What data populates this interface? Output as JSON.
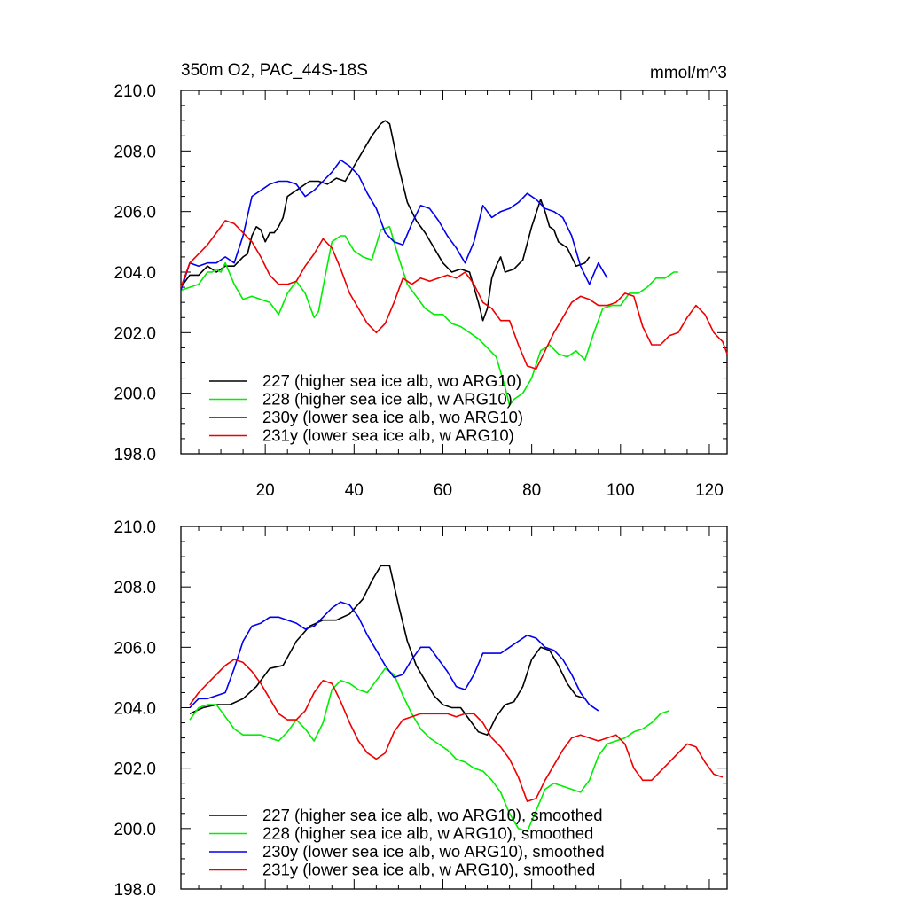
{
  "header": {
    "title": "350m O2, PAC_44S-18S",
    "units": "mmol/m^3"
  },
  "chart_data": [
    {
      "type": "line",
      "title": "350m O2, PAC_44S-18S",
      "units_label": "mmol/m^3",
      "xlim": [
        1,
        124
      ],
      "ylim": [
        198,
        210
      ],
      "x_ticks": [
        20,
        40,
        60,
        80,
        100,
        120
      ],
      "x_tick_labels": [
        "20",
        "40",
        "60",
        "80",
        "100",
        "120"
      ],
      "y_ticks": [
        198,
        200,
        202,
        204,
        206,
        208,
        210
      ],
      "y_tick_labels": [
        "198.0",
        "200.0",
        "202.0",
        "204.0",
        "206.0",
        "208.0",
        "210.0"
      ],
      "grid": false,
      "legend_position": "bottom-left",
      "series": [
        {
          "name": "227 (higher sea ice alb, wo ARG10)",
          "color": "#000000",
          "x": [
            1,
            3,
            5,
            7,
            9,
            11,
            13,
            15,
            16,
            17,
            18,
            19,
            20,
            21,
            22,
            23,
            24,
            25,
            26,
            27,
            28,
            29,
            30,
            32,
            34,
            36,
            38,
            40,
            42,
            44,
            46,
            47,
            48,
            50,
            52,
            54,
            56,
            58,
            60,
            62,
            64,
            66,
            68,
            69,
            70,
            71,
            72,
            73,
            74,
            76,
            78,
            80,
            82,
            83,
            84,
            85,
            86,
            88,
            90,
            92,
            93
          ],
          "y": [
            203.5,
            203.9,
            203.9,
            204.2,
            204.0,
            204.2,
            204.2,
            204.5,
            204.6,
            205.2,
            205.5,
            205.4,
            205.0,
            205.3,
            205.3,
            205.5,
            205.8,
            206.5,
            206.6,
            206.7,
            206.8,
            206.9,
            207.0,
            207.0,
            206.9,
            207.1,
            207.0,
            207.5,
            208.0,
            208.5,
            208.9,
            209.0,
            208.9,
            207.5,
            206.3,
            205.7,
            205.3,
            204.8,
            204.3,
            204.0,
            204.1,
            204.0,
            203.0,
            202.4,
            202.8,
            203.8,
            204.2,
            204.5,
            204.0,
            204.1,
            204.4,
            205.5,
            206.4,
            206.0,
            205.5,
            205.4,
            205.0,
            204.8,
            204.2,
            204.3,
            204.5
          ]
        },
        {
          "name": "228 (higher sea ice alb, w ARG10)",
          "color": "#00ee00",
          "x": [
            1,
            3,
            5,
            7,
            8,
            9,
            10,
            11,
            13,
            15,
            17,
            19,
            21,
            23,
            25,
            27,
            29,
            31,
            32,
            33,
            35,
            37,
            38,
            40,
            42,
            44,
            46,
            48,
            50,
            52,
            54,
            56,
            58,
            60,
            62,
            64,
            66,
            68,
            70,
            72,
            74,
            75,
            76,
            78,
            80,
            82,
            84,
            86,
            88,
            90,
            92,
            94,
            96,
            98,
            100,
            102,
            104,
            106,
            108,
            110,
            112,
            113
          ],
          "y": [
            203.4,
            203.5,
            203.6,
            204.0,
            204.0,
            204.1,
            204.0,
            204.3,
            203.6,
            203.1,
            203.2,
            203.1,
            203.0,
            202.6,
            203.3,
            203.7,
            203.3,
            202.5,
            202.7,
            203.5,
            205.0,
            205.2,
            205.2,
            204.7,
            204.5,
            204.4,
            205.4,
            205.5,
            204.5,
            203.6,
            203.2,
            202.8,
            202.6,
            202.6,
            202.3,
            202.2,
            202.0,
            201.8,
            201.5,
            201.2,
            200.2,
            199.6,
            199.8,
            200.0,
            200.5,
            201.4,
            201.6,
            201.3,
            201.2,
            201.4,
            201.1,
            202.0,
            202.8,
            202.9,
            202.9,
            203.3,
            203.3,
            203.5,
            203.8,
            203.8,
            204.0,
            204.0
          ]
        },
        {
          "name": "230y (lower sea ice alb, wo ARG10)",
          "color": "#0000ee",
          "x": [
            1,
            3,
            5,
            7,
            9,
            11,
            13,
            15,
            17,
            19,
            21,
            23,
            25,
            27,
            29,
            31,
            33,
            35,
            37,
            39,
            41,
            43,
            45,
            47,
            49,
            51,
            53,
            55,
            57,
            59,
            61,
            63,
            65,
            67,
            69,
            71,
            73,
            75,
            77,
            79,
            81,
            83,
            85,
            87,
            89,
            91,
            93,
            95,
            97
          ],
          "y": [
            203.4,
            204.3,
            204.2,
            204.3,
            204.3,
            204.5,
            204.3,
            205.2,
            206.5,
            206.7,
            206.9,
            207.0,
            207.0,
            206.9,
            206.5,
            206.7,
            207.0,
            207.3,
            207.7,
            207.5,
            207.2,
            206.6,
            206.1,
            205.3,
            205.0,
            204.9,
            205.6,
            206.2,
            206.1,
            205.7,
            205.2,
            204.8,
            204.3,
            205.0,
            206.2,
            205.8,
            206.0,
            206.1,
            206.3,
            206.6,
            206.4,
            206.1,
            206.0,
            205.8,
            205.2,
            204.2,
            203.6,
            204.3,
            203.8
          ]
        },
        {
          "name": "231y (lower sea ice alb, w ARG10)",
          "color": "#ee0000",
          "x": [
            1,
            3,
            5,
            7,
            9,
            11,
            13,
            15,
            17,
            19,
            21,
            23,
            25,
            27,
            29,
            31,
            33,
            35,
            37,
            39,
            41,
            43,
            45,
            47,
            49,
            51,
            53,
            55,
            57,
            59,
            61,
            63,
            65,
            67,
            69,
            71,
            73,
            75,
            77,
            79,
            81,
            83,
            85,
            87,
            89,
            91,
            93,
            95,
            97,
            99,
            101,
            103,
            105,
            107,
            109,
            111,
            113,
            115,
            117,
            119,
            121,
            123,
            124
          ],
          "y": [
            203.5,
            204.3,
            204.6,
            204.9,
            205.3,
            205.7,
            205.6,
            205.3,
            205.0,
            204.5,
            203.9,
            203.6,
            203.6,
            203.7,
            204.2,
            204.6,
            205.1,
            204.8,
            204.1,
            203.3,
            202.8,
            202.3,
            202.0,
            202.3,
            203.0,
            203.8,
            203.6,
            203.8,
            203.7,
            203.8,
            203.9,
            203.8,
            204.0,
            203.6,
            203.0,
            202.8,
            202.4,
            202.4,
            201.6,
            200.9,
            200.8,
            201.4,
            202.0,
            202.5,
            203.0,
            203.2,
            203.1,
            202.9,
            202.9,
            203.0,
            203.3,
            203.2,
            202.2,
            201.6,
            201.6,
            201.9,
            202.0,
            202.5,
            202.9,
            202.6,
            202.0,
            201.7,
            201.3
          ]
        }
      ]
    },
    {
      "type": "line",
      "xlim": [
        1,
        124
      ],
      "ylim": [
        198,
        210
      ],
      "y_ticks": [
        198,
        200,
        202,
        204,
        206,
        208,
        210
      ],
      "y_tick_labels": [
        "198.0",
        "200.0",
        "202.0",
        "204.0",
        "206.0",
        "208.0",
        "210.0"
      ],
      "grid": false,
      "legend_position": "bottom-left",
      "series": [
        {
          "name": "227 (higher sea ice alb, wo ARG10), smoothed",
          "color": "#000000",
          "x": [
            3,
            6,
            9,
            12,
            15,
            18,
            21,
            24,
            27,
            30,
            33,
            36,
            39,
            42,
            44,
            46,
            48,
            50,
            52,
            54,
            56,
            58,
            60,
            62,
            64,
            66,
            68,
            70,
            72,
            74,
            76,
            78,
            80,
            82,
            84,
            86,
            88,
            90,
            92
          ],
          "y": [
            203.8,
            204.0,
            204.1,
            204.1,
            204.3,
            204.7,
            205.3,
            205.4,
            206.2,
            206.7,
            206.9,
            206.9,
            207.1,
            207.6,
            208.2,
            208.7,
            208.7,
            207.4,
            206.2,
            205.4,
            204.9,
            204.4,
            204.1,
            204.0,
            204.0,
            203.6,
            203.2,
            203.1,
            203.7,
            204.1,
            204.2,
            204.7,
            205.6,
            206.0,
            205.9,
            205.4,
            204.8,
            204.4,
            204.3
          ]
        },
        {
          "name": "228 (higher sea ice alb, w ARG10), smoothed",
          "color": "#00ee00",
          "x": [
            3,
            5,
            7,
            9,
            11,
            13,
            15,
            17,
            19,
            21,
            23,
            25,
            27,
            29,
            31,
            33,
            35,
            37,
            39,
            41,
            43,
            45,
            47,
            49,
            51,
            53,
            55,
            57,
            59,
            61,
            63,
            65,
            67,
            69,
            71,
            73,
            75,
            77,
            79,
            81,
            83,
            85,
            87,
            89,
            91,
            93,
            95,
            97,
            99,
            101,
            103,
            105,
            107,
            109,
            111
          ],
          "y": [
            203.6,
            204.0,
            204.1,
            204.1,
            203.7,
            203.3,
            203.1,
            203.1,
            203.1,
            203.0,
            202.9,
            203.2,
            203.6,
            203.3,
            202.9,
            203.5,
            204.6,
            204.9,
            204.8,
            204.6,
            204.5,
            204.9,
            205.3,
            205.1,
            204.4,
            203.8,
            203.3,
            203.0,
            202.8,
            202.6,
            202.3,
            202.2,
            202.0,
            201.9,
            201.6,
            201.2,
            200.5,
            200.0,
            199.9,
            200.6,
            201.3,
            201.5,
            201.4,
            201.3,
            201.2,
            201.6,
            202.4,
            202.8,
            202.9,
            203.0,
            203.2,
            203.3,
            203.5,
            203.8,
            203.9
          ]
        },
        {
          "name": "230y (lower sea ice alb, wo ARG10), smoothed",
          "color": "#0000ee",
          "x": [
            3,
            5,
            7,
            9,
            11,
            13,
            15,
            17,
            19,
            21,
            23,
            25,
            27,
            29,
            31,
            33,
            35,
            37,
            39,
            41,
            43,
            45,
            47,
            49,
            51,
            53,
            55,
            57,
            59,
            61,
            63,
            65,
            67,
            69,
            71,
            73,
            75,
            77,
            79,
            81,
            83,
            85,
            87,
            89,
            91,
            93,
            95
          ],
          "y": [
            204.0,
            204.3,
            204.3,
            204.4,
            204.5,
            205.3,
            206.2,
            206.7,
            206.8,
            207.0,
            207.0,
            206.9,
            206.8,
            206.6,
            206.7,
            207.0,
            207.3,
            207.5,
            207.4,
            207.0,
            206.4,
            205.9,
            205.4,
            205.0,
            205.1,
            205.6,
            206.0,
            206.0,
            205.6,
            205.2,
            204.7,
            204.6,
            205.1,
            205.8,
            205.8,
            205.8,
            206.0,
            206.2,
            206.4,
            206.3,
            206.0,
            205.9,
            205.6,
            205.1,
            204.5,
            204.1,
            203.9
          ]
        },
        {
          "name": "231y (lower sea ice alb, w ARG10), smoothed",
          "color": "#ee0000",
          "x": [
            3,
            5,
            7,
            9,
            11,
            13,
            15,
            17,
            19,
            21,
            23,
            25,
            27,
            29,
            31,
            33,
            35,
            37,
            39,
            41,
            43,
            45,
            47,
            49,
            51,
            53,
            55,
            57,
            59,
            61,
            63,
            65,
            67,
            69,
            71,
            73,
            75,
            77,
            79,
            81,
            83,
            85,
            87,
            89,
            91,
            93,
            95,
            97,
            99,
            101,
            103,
            105,
            107,
            109,
            111,
            113,
            115,
            117,
            119,
            121,
            123
          ],
          "y": [
            204.1,
            204.5,
            204.8,
            205.1,
            205.4,
            205.6,
            205.5,
            205.2,
            204.8,
            204.3,
            203.8,
            203.6,
            203.6,
            203.9,
            204.5,
            204.9,
            204.8,
            204.2,
            203.5,
            202.9,
            202.5,
            202.3,
            202.5,
            203.2,
            203.6,
            203.7,
            203.8,
            203.8,
            203.8,
            203.8,
            203.7,
            203.8,
            203.8,
            203.5,
            203.0,
            202.7,
            202.3,
            201.7,
            200.9,
            201.0,
            201.6,
            202.1,
            202.6,
            203.0,
            203.1,
            203.0,
            202.9,
            203.0,
            203.1,
            202.8,
            202.0,
            201.6,
            201.6,
            201.9,
            202.2,
            202.5,
            202.8,
            202.7,
            202.2,
            201.8,
            201.7
          ]
        }
      ]
    }
  ]
}
